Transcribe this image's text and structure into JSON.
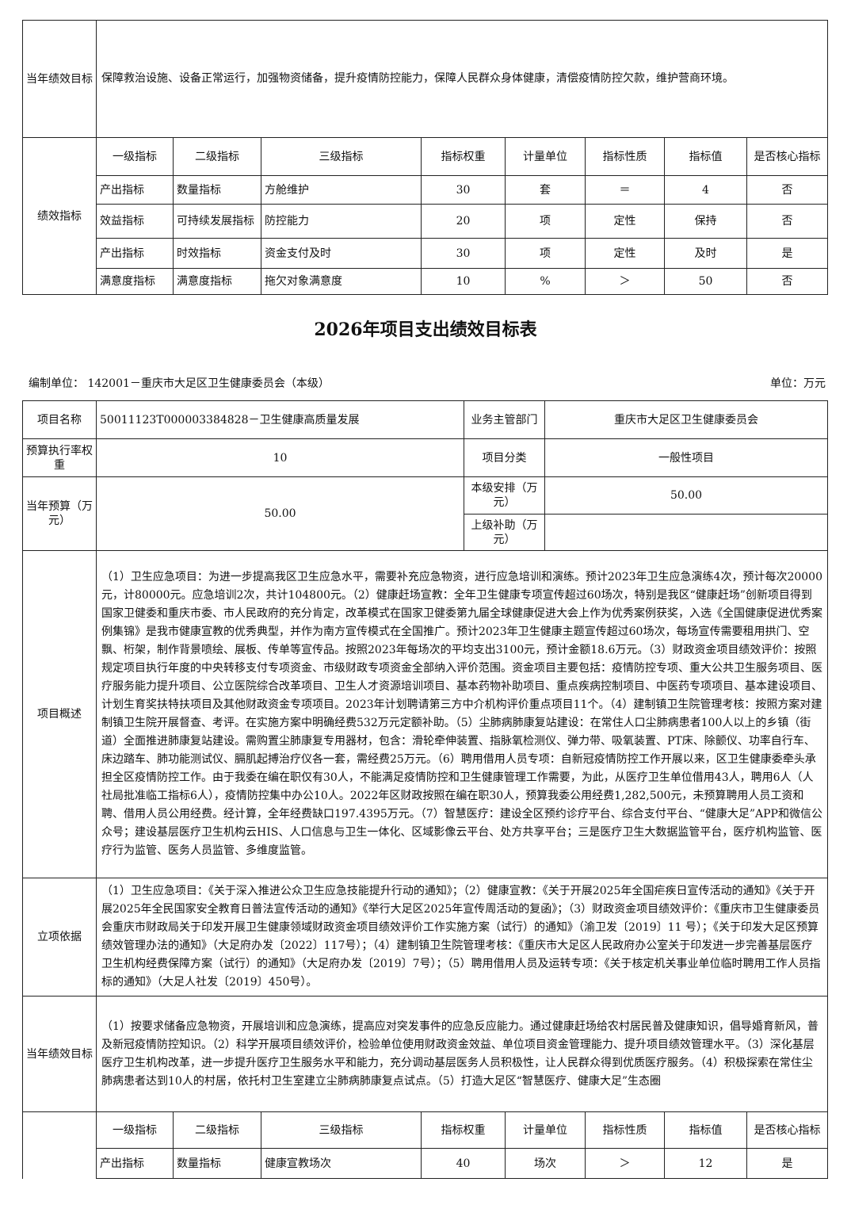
{
  "prev_section": {
    "goal_label": "当年绩效目标",
    "goal_text": "保障救治设施、设备正常运行，加强物资储备，提升疫情防控能力，保障人民群众身体健康，清偿疫情防控欠款，维护营商环境。",
    "indicator_label": "绩效指标",
    "headers": [
      "一级指标",
      "二级指标",
      "三级指标",
      "指标权重",
      "计量单位",
      "指标性质",
      "指标值",
      "是否核心指标"
    ],
    "rows": [
      [
        "产出指标",
        "数量指标",
        "方舱维护",
        "30",
        "套",
        "＝",
        "4",
        "否"
      ],
      [
        "效益指标",
        "可持续发展指标",
        "防控能力",
        "20",
        "项",
        "定性",
        "保持",
        "否"
      ],
      [
        "产出指标",
        "时效指标",
        "资金支付及时",
        "30",
        "项",
        "定性",
        "及时",
        "是"
      ],
      [
        "满意度指标",
        "满意度指标",
        "拖欠对象满意度",
        "10",
        "%",
        "＞",
        "50",
        "否"
      ]
    ]
  },
  "title": "2026年项目支出绩效目标表",
  "org_label": "编制单位：  142001－重庆市大足区卫生健康委员会（本级）",
  "unit_label": "单位：万元",
  "project": {
    "name_label": "项目名称",
    "name": "50011123T000003384828－卫生健康高质量发展",
    "dept_label": "业务主管部门",
    "dept": "重庆市大足区卫生健康委员会",
    "rate_label": "预算执行率权重",
    "rate": "10",
    "category_label": "项目分类",
    "category": "一般性项目",
    "budget_label": "当年预算（万元）",
    "budget": "50.00",
    "local_label": "本级安排（万元）",
    "local": "50.00",
    "upper_label": "上级补助（万元）",
    "upper": "",
    "overview_label": "项目概述",
    "overview": "（1）卫生应急项目：为进一步提高我区卫生应急水平，需要补充应急物资，进行应急培训和演练。预计2023年卫生应急演练4次，预计每次20000元，计80000元。应急培训2次，共计104800元。（2）健康赶场宣教：全年卫生健康专项宣传超过60场次，特别是我区“健康赶场”创新项目得到国家卫健委和重庆市委、市人民政府的充分肯定，改革模式在国家卫健委第九届全球健康促进大会上作为优秀案例获奖，入选《全国健康促进优秀案例集锦》是我市健康宣教的优秀典型，并作为南方宣传模式在全国推广。预计2023年卫生健康主题宣传超过60场次，每场宣传需要租用拱门、空飘、桁架，制作背景喷绘、展板、传单等宣传品。按照2023年每场次的平均支出3100元，预计金额18.6万元。（3）财政资金项目绩效评价：按照规定项目执行年度的中央转移支付专项资金、市级财政专项资金全部纳入评价范围。资金项目主要包括：疫情防控专项、重大公共卫生服务项目、医疗服务能力提升项目、公立医院综合改革项目、卫生人才资源培训项目、基本药物补助项目、重点疾病控制项目、中医药专项项目、基本建设项目、计划生育奖扶特扶项目及其他财政资金专项项目。2023年计划聘请第三方中介机构评价重点项目11个。（4）建制镇卫生院管理考核：按照方案对建制镇卫生院开展督查、考评。在实施方案中明确经费532万元定额补助。（5）尘肺病肺康复站建设：在常住人口尘肺病患者100人以上的乡镇（街道）全面推进肺康复站建设。需购置尘肺康复专用器材，包含：滑轮牵伸装置、指脉氧检测仪、弹力带、吸氧装置、PT床、除颤仪、功率自行车、床边踏车、肺功能测试仪、膈肌起搏治疗仪各一套，需经费25万元。（6）聘用借用人员专项：自新冠疫情防控工作开展以来，区卫生健康委牵头承担全区疫情防控工作。由于我委在编在职仅有30人，不能满足疫情防控和卫生健康管理工作需要，为此，从医疗卫生单位借用43人，聘用6人（人社局批准临工指标6人），疫情防控集中办公10人。2022年区财政按照在编在职30人，预算我委公用经费1,282,500元，未预算聘用人员工资和聘、借用人员公用经费。经计算，全年经费缺口197.4395万元。（7）智慧医疗：建设全区预约诊疗平台、综合支付平台、“健康大足”APP和微信公众号；建设基层医疗卫生机构云HIS、人口信息与卫生一体化、区域影像云平台、处方共享平台；三是医疗卫生大数据监管平台，医疗机构监管、医疗行为监管、医务人员监管、多维度监管。",
    "basis_label": "立项依据",
    "basis": "（1）卫生应急项目：《关于深入推进公众卫生应急技能提升行动的通知》；（2）健康宣教：《关于开展2025年全国疟疾日宣传活动的通知》《关于开展2025年全民国家安全教育日普法宣传活动的通知》《举行大足区2025年宣传周活动的复函》；（3）财政资金项目绩效评价：《重庆市卫生健康委员会重庆市财政局关于印发开展卫生健康领域财政资金项目绩效评价工作实施方案（试行）的通知》（渝卫发〔2019〕11 号）；《关于印发大足区预算绩效管理办法的通知》（大足府办发〔2022〕117号）；（4）建制镇卫生院管理考核：《重庆市大足区人民政府办公室关于印发进一步完善基层医疗卫生机构经费保障方案（试行）的通知》（大足府办发〔2019〕7号）；（5）聘用借用人员及运转专项：《关于核定机关事业单位临时聘用工作人员指标的通知》（大足人社发〔2019〕450号）。",
    "goal_label": "当年绩效目标",
    "goal": "（1）按要求储备应急物资，开展培训和应急演练，提高应对突发事件的应急反应能力。通过健康赶场给农村居民普及健康知识，倡导婚育新风，普及新冠疫情防控知识。（2）科学开展项目绩效评价，检验单位使用财政资金效益、单位项目资金管理能力、提升项目绩效管理水平。（3）深化基层医疗卫生机构改革，进一步提升医疗卫生服务水平和能力，充分调动基层医务人员积极性，让人民群众得到优质医疗服务。（4）积极探索在常住尘肺病患者达到10人的村居，依托村卫生室建立尘肺病肺康复点试点。（5）打造大足区“智慧医疗、健康大足”生态圈",
    "headers": [
      "一级指标",
      "二级指标",
      "三级指标",
      "指标权重",
      "计量单位",
      "指标性质",
      "指标值",
      "是否核心指标"
    ],
    "rows": [
      [
        "产出指标",
        "数量指标",
        "健康宣教场次",
        "40",
        "场次",
        "＞",
        "12",
        "是"
      ]
    ]
  }
}
